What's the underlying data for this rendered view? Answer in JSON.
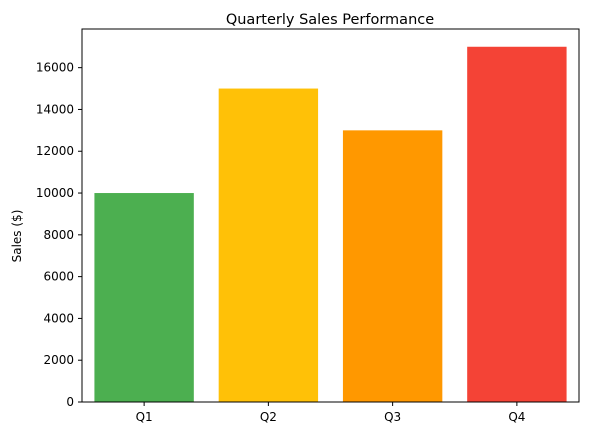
{
  "chart_data": {
    "type": "bar",
    "title": "Quarterly Sales Performance",
    "xlabel": "",
    "ylabel": "Sales ($)",
    "categories": [
      "Q1",
      "Q2",
      "Q3",
      "Q4"
    ],
    "values": [
      10000,
      15000,
      13000,
      17000
    ],
    "colors": [
      "#4caf50",
      "#ffc107",
      "#ff9800",
      "#f44336"
    ],
    "ylim": [
      0,
      17850
    ],
    "yticks": [
      0,
      2000,
      4000,
      6000,
      8000,
      10000,
      12000,
      14000,
      16000
    ],
    "grid": false,
    "legend": "none"
  }
}
